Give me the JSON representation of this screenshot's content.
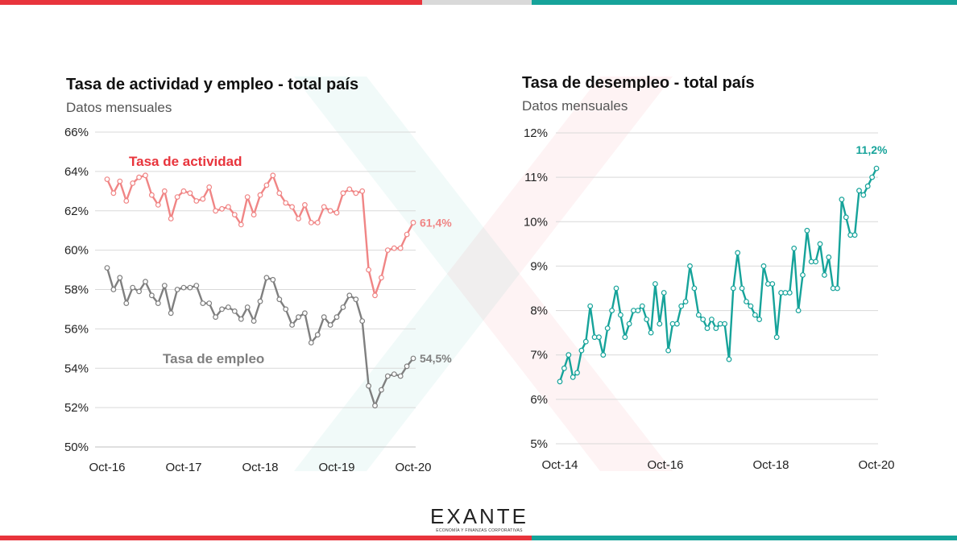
{
  "colors": {
    "activity": "#f08585",
    "employment": "#7f7f7f",
    "unemployment": "#16a39a",
    "label_red": "#e8343c",
    "label_grey": "#7f7f7f"
  },
  "logo": {
    "name": "EXANTE",
    "tagline": "ECONOMÍA Y FINANZAS CORPORATIVAS"
  },
  "chart_data": [
    {
      "type": "line",
      "title": "Tasa de actividad y empleo - total país",
      "subtitle": "Datos mensuales",
      "x_tick_labels": [
        "Oct-16",
        "Oct-17",
        "Oct-18",
        "Oct-19",
        "Oct-20"
      ],
      "y_tick_labels": [
        "50%",
        "52%",
        "54%",
        "56%",
        "58%",
        "60%",
        "62%",
        "64%",
        "66%"
      ],
      "ylim": [
        50,
        66
      ],
      "grid": true,
      "x": [
        "2016-10",
        "2016-11",
        "2016-12",
        "2017-01",
        "2017-02",
        "2017-03",
        "2017-04",
        "2017-05",
        "2017-06",
        "2017-07",
        "2017-08",
        "2017-09",
        "2017-10",
        "2017-11",
        "2017-12",
        "2018-01",
        "2018-02",
        "2018-03",
        "2018-04",
        "2018-05",
        "2018-06",
        "2018-07",
        "2018-08",
        "2018-09",
        "2018-10",
        "2018-11",
        "2018-12",
        "2019-01",
        "2019-02",
        "2019-03",
        "2019-04",
        "2019-05",
        "2019-06",
        "2019-07",
        "2019-08",
        "2019-09",
        "2019-10",
        "2019-11",
        "2019-12",
        "2020-01",
        "2020-02",
        "2020-03",
        "2020-04",
        "2020-05",
        "2020-06",
        "2020-07",
        "2020-08",
        "2020-09",
        "2020-10"
      ],
      "series": [
        {
          "name": "Tasa de actividad",
          "end_label": "61,4%",
          "values": [
            63.6,
            62.9,
            63.5,
            62.5,
            63.4,
            63.7,
            63.8,
            62.8,
            62.3,
            63.0,
            61.6,
            62.7,
            63.0,
            62.9,
            62.5,
            62.6,
            63.2,
            62.0,
            62.1,
            62.2,
            61.8,
            61.3,
            62.7,
            61.8,
            62.8,
            63.3,
            63.8,
            62.9,
            62.4,
            62.2,
            61.6,
            62.3,
            61.4,
            61.4,
            62.2,
            62.0,
            61.9,
            62.9,
            63.1,
            62.9,
            63.0,
            59.0,
            57.7,
            58.6,
            60.0,
            60.1,
            60.1,
            60.8,
            61.4
          ]
        },
        {
          "name": "Tasa de empleo",
          "end_label": "54,5%",
          "values": [
            59.1,
            58.0,
            58.6,
            57.3,
            58.1,
            57.9,
            58.4,
            57.7,
            57.3,
            58.2,
            56.8,
            58.0,
            58.1,
            58.1,
            58.2,
            57.3,
            57.3,
            56.6,
            57.0,
            57.1,
            56.9,
            56.5,
            57.1,
            56.4,
            57.4,
            58.6,
            58.5,
            57.5,
            57.0,
            56.2,
            56.6,
            56.8,
            55.3,
            55.7,
            56.6,
            56.2,
            56.6,
            57.1,
            57.7,
            57.5,
            56.4,
            53.1,
            52.1,
            52.9,
            53.6,
            53.7,
            53.6,
            54.1,
            54.5
          ]
        }
      ]
    },
    {
      "type": "line",
      "title": "Tasa de desempleo - total país",
      "subtitle": "Datos mensuales",
      "x_tick_labels": [
        "Oct-14",
        "Oct-16",
        "Oct-18",
        "Oct-20"
      ],
      "y_tick_labels": [
        "5%",
        "6%",
        "7%",
        "8%",
        "9%",
        "10%",
        "11%",
        "12%"
      ],
      "ylim": [
        5,
        12
      ],
      "grid": true,
      "x_range": [
        "2014-10",
        "2020-10"
      ],
      "series": [
        {
          "name": "Tasa de desempleo",
          "end_label": "11,2%",
          "values": [
            6.4,
            6.7,
            7.0,
            6.5,
            6.6,
            7.1,
            7.3,
            8.1,
            7.4,
            7.4,
            7.0,
            7.6,
            8.0,
            8.5,
            7.9,
            7.4,
            7.7,
            8.0,
            8.0,
            8.1,
            7.8,
            7.5,
            8.6,
            7.7,
            8.4,
            7.1,
            7.7,
            7.7,
            8.1,
            8.2,
            9.0,
            8.5,
            7.9,
            7.8,
            7.6,
            7.8,
            7.6,
            7.7,
            7.7,
            6.9,
            8.5,
            9.3,
            8.5,
            8.2,
            8.1,
            7.9,
            7.8,
            9.0,
            8.6,
            8.6,
            7.4,
            8.4,
            8.4,
            8.4,
            9.4,
            8.0,
            8.8,
            9.8,
            9.1,
            9.1,
            9.5,
            8.8,
            9.2,
            8.5,
            8.5,
            10.5,
            10.1,
            9.7,
            9.7,
            10.7,
            10.6,
            10.8,
            11.0,
            11.2
          ]
        }
      ]
    }
  ]
}
